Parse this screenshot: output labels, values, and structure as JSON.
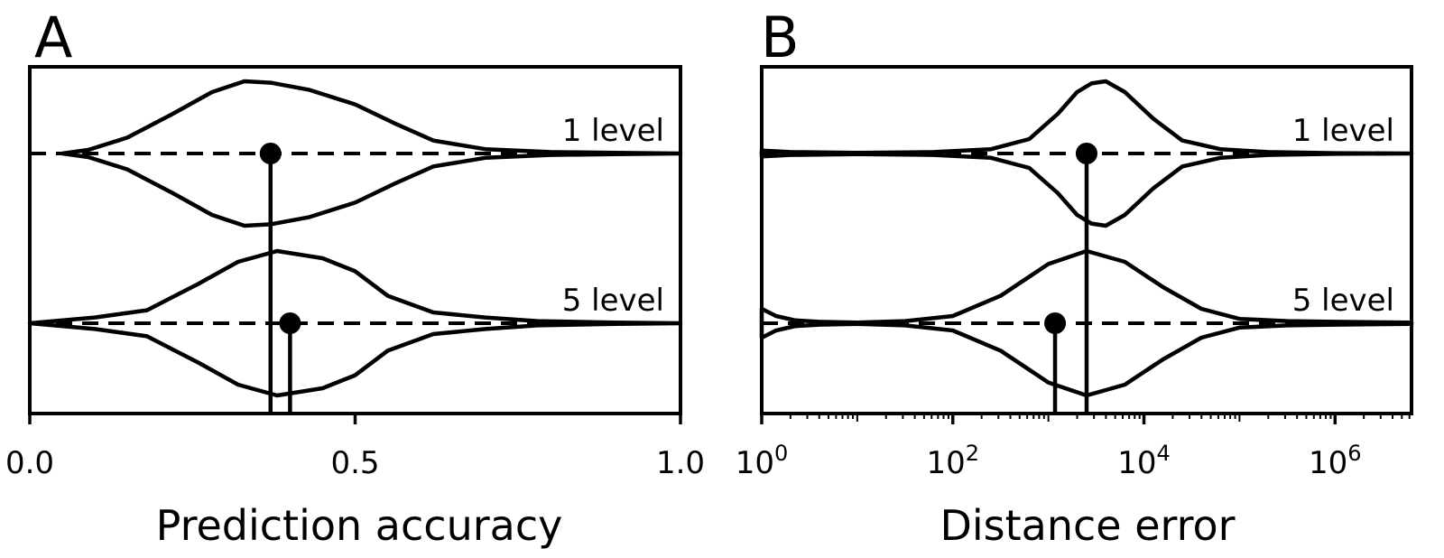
{
  "chart_data": [
    {
      "type": "violin",
      "panel": "A",
      "xlabel": "Prediction accuracy",
      "xscale": "linear",
      "xlim": [
        0.0,
        1.0
      ],
      "xticks": [
        {
          "value": 0.0,
          "label": "0.0"
        },
        {
          "value": 0.5,
          "label": "0.5"
        },
        {
          "value": 1.0,
          "label": "1.0"
        }
      ],
      "series": [
        {
          "name": "1 level",
          "marker_value": 0.37,
          "density": [
            [
              0.05,
              0.0
            ],
            [
              0.09,
              0.05
            ],
            [
              0.15,
              0.22
            ],
            [
              0.22,
              0.55
            ],
            [
              0.28,
              0.85
            ],
            [
              0.33,
              1.0
            ],
            [
              0.37,
              0.98
            ],
            [
              0.43,
              0.88
            ],
            [
              0.5,
              0.68
            ],
            [
              0.56,
              0.42
            ],
            [
              0.62,
              0.18
            ],
            [
              0.7,
              0.06
            ],
            [
              0.8,
              0.02
            ],
            [
              0.9,
              0.01
            ],
            [
              1.0,
              0.0
            ]
          ]
        },
        {
          "name": "5 level",
          "marker_value": 0.4,
          "density": [
            [
              0.0,
              0.0
            ],
            [
              0.1,
              0.08
            ],
            [
              0.18,
              0.18
            ],
            [
              0.26,
              0.55
            ],
            [
              0.32,
              0.85
            ],
            [
              0.38,
              1.0
            ],
            [
              0.45,
              0.9
            ],
            [
              0.5,
              0.72
            ],
            [
              0.55,
              0.38
            ],
            [
              0.62,
              0.15
            ],
            [
              0.7,
              0.08
            ],
            [
              0.78,
              0.03
            ],
            [
              0.9,
              0.01
            ],
            [
              1.0,
              0.0
            ]
          ]
        }
      ]
    },
    {
      "type": "violin",
      "panel": "B",
      "xlabel": "Distance error",
      "xscale": "log",
      "xlim_exp": [
        0,
        6.8
      ],
      "xticks": [
        {
          "value_exp": 0,
          "base": "10",
          "exp": "0"
        },
        {
          "value_exp": 2,
          "base": "10",
          "exp": "2"
        },
        {
          "value_exp": 4,
          "base": "10",
          "exp": "4"
        },
        {
          "value_exp": 6,
          "base": "10",
          "exp": "6"
        }
      ],
      "series": [
        {
          "name": "1 level",
          "marker_value_exp": 3.4,
          "density": [
            [
              0.0,
              0.04
            ],
            [
              0.3,
              0.02
            ],
            [
              1.0,
              0.01
            ],
            [
              1.8,
              0.02
            ],
            [
              2.4,
              0.06
            ],
            [
              2.8,
              0.2
            ],
            [
              3.1,
              0.55
            ],
            [
              3.3,
              0.85
            ],
            [
              3.45,
              0.97
            ],
            [
              3.6,
              1.0
            ],
            [
              3.8,
              0.85
            ],
            [
              4.1,
              0.48
            ],
            [
              4.4,
              0.18
            ],
            [
              4.8,
              0.06
            ],
            [
              5.3,
              0.02
            ],
            [
              6.0,
              0.005
            ],
            [
              6.8,
              0.0
            ]
          ]
        },
        {
          "name": "5 level",
          "marker_value_exp": 3.07,
          "density": [
            [
              0.0,
              0.2
            ],
            [
              0.15,
              0.1
            ],
            [
              0.35,
              0.04
            ],
            [
              0.6,
              0.02
            ],
            [
              1.0,
              0.01
            ],
            [
              1.5,
              0.03
            ],
            [
              2.0,
              0.1
            ],
            [
              2.5,
              0.38
            ],
            [
              3.0,
              0.82
            ],
            [
              3.4,
              1.0
            ],
            [
              3.8,
              0.85
            ],
            [
              4.2,
              0.5
            ],
            [
              4.6,
              0.2
            ],
            [
              5.0,
              0.06
            ],
            [
              5.5,
              0.03
            ],
            [
              6.0,
              0.02
            ],
            [
              6.8,
              0.01
            ]
          ]
        }
      ]
    }
  ]
}
